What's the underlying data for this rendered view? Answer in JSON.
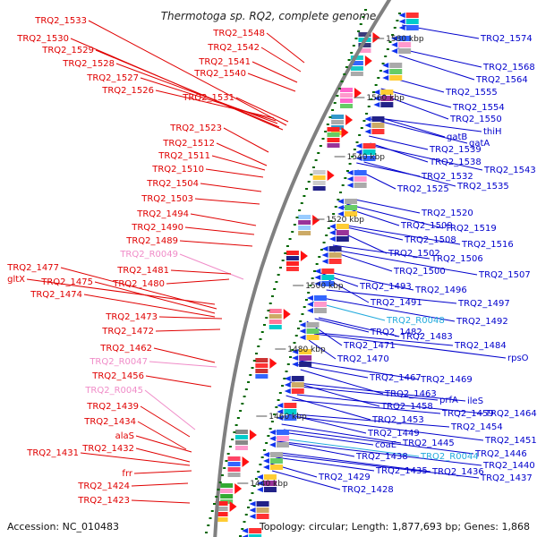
{
  "title": "Thermotoga sp. RQ2, complete genome",
  "footer": {
    "accession": "Accession: NC_010483",
    "summary": "Topology: circular; Length: 1,877,693 bp; Genes: 1,868"
  },
  "colors": {
    "left_label": "#e00000",
    "left_label_rna": "#f08cc8",
    "right_label": "#0000cc",
    "right_label_rna": "#22aadd",
    "backbone": "#808080",
    "tick": "#006600"
  },
  "kbp_ticks": [
    "1580 kbp",
    "1560 kbp",
    "1540 kbp",
    "1520 kbp",
    "1500 kbp",
    "1480 kbp",
    "1460 kbp",
    "1440 kbp"
  ],
  "left_labels": [
    {
      "text": "TRQ2_1533",
      "rna": false
    },
    {
      "text": "TRQ2_1530",
      "rna": false
    },
    {
      "text": "TRQ2_1529",
      "rna": false
    },
    {
      "text": "TRQ2_1528",
      "rna": false
    },
    {
      "text": "TRQ2_1527",
      "rna": false
    },
    {
      "text": "TRQ2_1526",
      "rna": false
    },
    {
      "text": "TRQ2_1548",
      "rna": false
    },
    {
      "text": "TRQ2_1542",
      "rna": false
    },
    {
      "text": "TRQ2_1541",
      "rna": false
    },
    {
      "text": "TRQ2_1540",
      "rna": false
    },
    {
      "text": "TRQ2_1531",
      "rna": false
    },
    {
      "text": "TRQ2_1523",
      "rna": false
    },
    {
      "text": "TRQ2_1512",
      "rna": false
    },
    {
      "text": "TRQ2_1511",
      "rna": false
    },
    {
      "text": "TRQ2_1510",
      "rna": false
    },
    {
      "text": "TRQ2_1504",
      "rna": false
    },
    {
      "text": "TRQ2_1503",
      "rna": false
    },
    {
      "text": "TRQ2_1494",
      "rna": false
    },
    {
      "text": "TRQ2_1490",
      "rna": false
    },
    {
      "text": "TRQ2_1489",
      "rna": false
    },
    {
      "text": "TRQ2_R0049",
      "rna": true
    },
    {
      "text": "gltX",
      "rna": false
    },
    {
      "text": "TRQ2_1477",
      "rna": false
    },
    {
      "text": "TRQ2_1481",
      "rna": false
    },
    {
      "text": "TRQ2_1475",
      "rna": false
    },
    {
      "text": "TRQ2_1480",
      "rna": false
    },
    {
      "text": "TRQ2_1474",
      "rna": false
    },
    {
      "text": "TRQ2_1473",
      "rna": false
    },
    {
      "text": "TRQ2_1472",
      "rna": false
    },
    {
      "text": "TRQ2_1462",
      "rna": false
    },
    {
      "text": "TRQ2_R0047",
      "rna": true
    },
    {
      "text": "TRQ2_1456",
      "rna": false
    },
    {
      "text": "TRQ2_R0045",
      "rna": true
    },
    {
      "text": "TRQ2_1439",
      "rna": false
    },
    {
      "text": "TRQ2_1434",
      "rna": false
    },
    {
      "text": "alaS",
      "rna": false
    },
    {
      "text": "TRQ2_1432",
      "rna": false
    },
    {
      "text": "TRQ2_1431",
      "rna": false
    },
    {
      "text": "frr",
      "rna": false
    },
    {
      "text": "TRQ2_1424",
      "rna": false
    },
    {
      "text": "TRQ2_1423",
      "rna": false
    }
  ],
  "right_labels": [
    {
      "text": "TRQ2_1574",
      "rna": false
    },
    {
      "text": "TRQ2_1568",
      "rna": false
    },
    {
      "text": "TRQ2_1564",
      "rna": false
    },
    {
      "text": "TRQ2_1555",
      "rna": false
    },
    {
      "text": "TRQ2_1554",
      "rna": false
    },
    {
      "text": "TRQ2_1550",
      "rna": false
    },
    {
      "text": "thiH",
      "rna": false
    },
    {
      "text": "gatB",
      "rna": false
    },
    {
      "text": "gatA",
      "rna": false
    },
    {
      "text": "TRQ2_1539",
      "rna": false
    },
    {
      "text": "TRQ2_1538",
      "rna": false
    },
    {
      "text": "TRQ2_1543",
      "rna": false
    },
    {
      "text": "TRQ2_1532",
      "rna": false
    },
    {
      "text": "TRQ2_1525",
      "rna": false
    },
    {
      "text": "TRQ2_1535",
      "rna": false
    },
    {
      "text": "TRQ2_1520",
      "rna": false
    },
    {
      "text": "TRQ2_1509",
      "rna": false
    },
    {
      "text": "TRQ2_1519",
      "rna": false
    },
    {
      "text": "TRQ2_1508",
      "rna": false
    },
    {
      "text": "TRQ2_1516",
      "rna": false
    },
    {
      "text": "TRQ2_1502",
      "rna": false
    },
    {
      "text": "TRQ2_1506",
      "rna": false
    },
    {
      "text": "TRQ2_1500",
      "rna": false
    },
    {
      "text": "TRQ2_1507",
      "rna": false
    },
    {
      "text": "TRQ2_1493",
      "rna": false
    },
    {
      "text": "TRQ2_1496",
      "rna": false
    },
    {
      "text": "TRQ2_1491",
      "rna": false
    },
    {
      "text": "TRQ2_1497",
      "rna": false
    },
    {
      "text": "TRQ2_R0048",
      "rna": true
    },
    {
      "text": "TRQ2_1492",
      "rna": false
    },
    {
      "text": "TRQ2_1482",
      "rna": false
    },
    {
      "text": "TRQ2_1483",
      "rna": false
    },
    {
      "text": "TRQ2_1471",
      "rna": false
    },
    {
      "text": "TRQ2_1484",
      "rna": false
    },
    {
      "text": "TRQ2_1470",
      "rna": false
    },
    {
      "text": "rpsO",
      "rna": false
    },
    {
      "text": "TRQ2_1467",
      "rna": false
    },
    {
      "text": "TRQ2_1469",
      "rna": false
    },
    {
      "text": "TRQ2_1463",
      "rna": false
    },
    {
      "text": "prfA",
      "rna": false
    },
    {
      "text": "ileS",
      "rna": false
    },
    {
      "text": "TRQ2_1458",
      "rna": false
    },
    {
      "text": "TRQ2_1459",
      "rna": false
    },
    {
      "text": "TRQ2_1464",
      "rna": false
    },
    {
      "text": "TRQ2_1453",
      "rna": false
    },
    {
      "text": "TRQ2_1454",
      "rna": false
    },
    {
      "text": "TRQ2_1449",
      "rna": false
    },
    {
      "text": "TRQ2_1451",
      "rna": false
    },
    {
      "text": "coaE",
      "rna": false
    },
    {
      "text": "TRQ2_1445",
      "rna": false
    },
    {
      "text": "TRQ2_1446",
      "rna": false
    },
    {
      "text": "TRQ2_1438",
      "rna": false
    },
    {
      "text": "TRQ2_R0044",
      "rna": true
    },
    {
      "text": "TRQ2_1440",
      "rna": false
    },
    {
      "text": "TRQ2_1435",
      "rna": false
    },
    {
      "text": "TRQ2_1436",
      "rna": false
    },
    {
      "text": "TRQ2_1437",
      "rna": false
    },
    {
      "text": "TRQ2_1429",
      "rna": false
    },
    {
      "text": "TRQ2_1428",
      "rna": false
    }
  ]
}
